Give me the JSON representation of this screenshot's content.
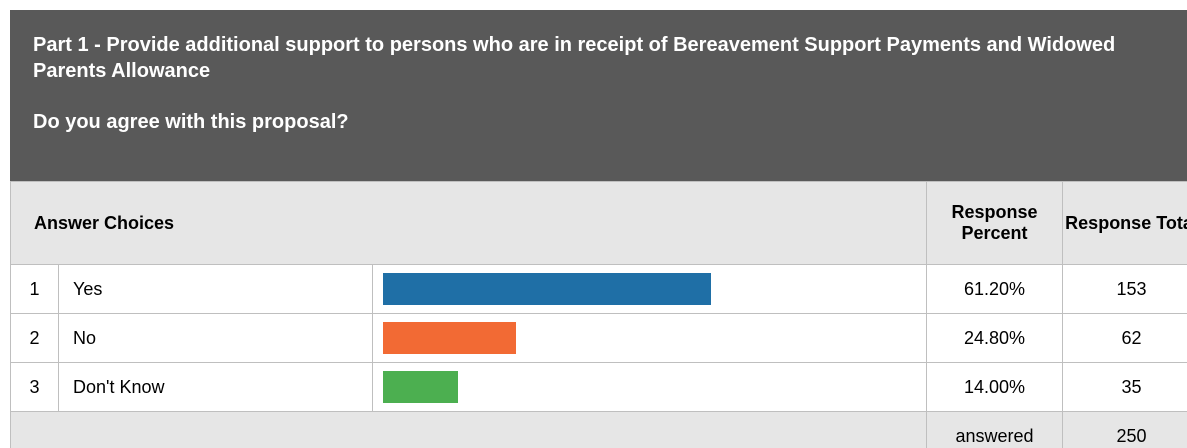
{
  "header": {
    "title": "Part 1 - Provide additional support to persons who are in receipt of Bereavement Support Payments and Widowed Parents Allowance",
    "question": "Do you agree with this proposal?"
  },
  "table": {
    "col_answer": "Answer Choices",
    "col_percent": "Response Percent",
    "col_total": "Response Total",
    "footer_label": "answered",
    "footer_total": "250"
  },
  "chart_data": {
    "type": "bar",
    "categories": [
      "Yes",
      "No",
      "Don't Know"
    ],
    "row_numbers": [
      "1",
      "2",
      "3"
    ],
    "values": [
      61.2,
      24.8,
      14.0
    ],
    "percent_labels": [
      "61.20%",
      "24.80%",
      "14.00%"
    ],
    "totals": [
      "153",
      "62",
      "35"
    ],
    "colors": [
      "#1f6fa6",
      "#f26a34",
      "#4caf50"
    ],
    "xlim": [
      0,
      100
    ]
  }
}
